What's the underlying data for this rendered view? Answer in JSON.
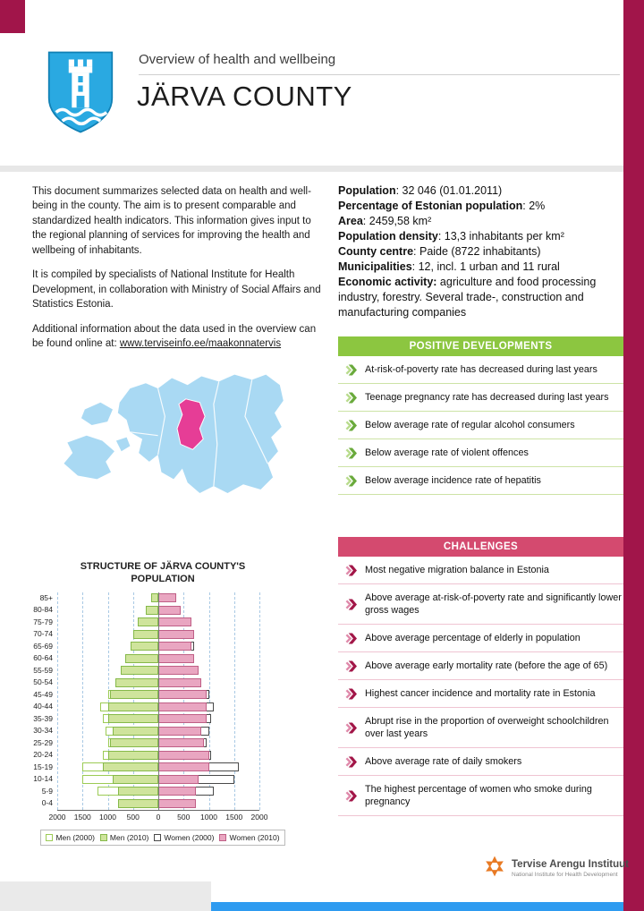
{
  "header": {
    "overline": "Overview of health and wellbeing",
    "title": "JÄRVA COUNTY"
  },
  "intro": {
    "p1": "This document summarizes selected data on health and well-being in the county. The aim is to present comparable and standardized health indicators. This information gives input to the regional planning of services for improving the health and wellbeing of inhabitants.",
    "p2": "It is compiled by specialists of National Institute for Health Development, in collaboration with Ministry of Social Affairs and Statistics Estonia.",
    "p3_prefix": "Additional information about the data used in the overview can be found online at: ",
    "p3_link": "www.terviseinfo.ee/maakonnatervis"
  },
  "facts": [
    {
      "label": "Population",
      "value": ": 32 046 (01.01.2011)"
    },
    {
      "label": "Percentage of Estonian population",
      "value": ": 2%"
    },
    {
      "label": "Area",
      "value": ": 2459,58 km²"
    },
    {
      "label": "Population density",
      "value": ": 13,3 inhabitants per km²"
    },
    {
      "label": "County centre",
      "value": ": Paide (8722 inhabitants)"
    },
    {
      "label": "Municipalities",
      "value": ": 12, incl. 1 urban and 11 rural"
    },
    {
      "label": "Economic activity:",
      "value": " agriculture and food processing industry, forestry. Several trade-, construction and manufacturing companies"
    }
  ],
  "positive": {
    "title": "POSITIVE DEVELOPMENTS",
    "color": "#8cc640",
    "divider": "#cde3a6",
    "arrow_main": "#6aaa3c",
    "arrow_light": "#b9dc8d",
    "items": [
      "At-risk-of-poverty rate has decreased during last years",
      "Teenage pregnancy rate has decreased during last years",
      "Below average rate of regular alcohol consumers",
      "Below average rate of violent offences",
      "Below average incidence rate of hepatitis"
    ]
  },
  "challenges": {
    "title": "CHALLENGES",
    "color": "#d44a6f",
    "divider": "#efc4d2",
    "arrow_main": "#a21648",
    "arrow_light": "#e08aab",
    "items": [
      "Most negative migration balance in Estonia",
      "Above average at-risk-of-poverty rate and significantly lower gross wages",
      "Above average percentage of elderly in population",
      "Above average early mortality rate (before the age of 65)",
      "Highest  cancer incidence and mortality rate in Estonia",
      "Abrupt rise in the proportion of overweight schoolchildren over last years",
      "Above average rate of daily smokers",
      "The highest percentage of women who smoke during pregnancy"
    ]
  },
  "map": {
    "land_color": "#a9d9f3",
    "highlight_color": "#e63d96",
    "highlighted_region": "Järva county"
  },
  "logo": {
    "name": "Tervise Arengu Instituut",
    "subtitle": "National Institute for Health Development",
    "color": "#e87a24"
  },
  "decor": {
    "maroon": "#a1154a",
    "footer_blue": "#2e9bf0",
    "footer_gray": "#eaeaea",
    "band_gray": "#e7e7e7"
  },
  "chart_data": {
    "type": "bar",
    "variant": "population_pyramid",
    "title": "STRUCTURE OF JÄRVA COUNTY'S POPULATION",
    "categories": [
      "85+",
      "80-84",
      "75-79",
      "70-74",
      "65-69",
      "60-64",
      "55-59",
      "50-54",
      "45-49",
      "40-44",
      "35-39",
      "30-34",
      "25-29",
      "20-24",
      "15-19",
      "10-14",
      "5-9",
      "0-4"
    ],
    "series": [
      {
        "name": "Men (2000)",
        "side": "left",
        "style": "outline",
        "fill": "#ffffff",
        "border": "#9ccb55",
        "values": [
          100,
          180,
          320,
          450,
          550,
          600,
          700,
          800,
          1000,
          1150,
          1100,
          1050,
          1000,
          1100,
          1500,
          1500,
          1200,
          800
        ]
      },
      {
        "name": "Men (2010)",
        "side": "left",
        "style": "fill",
        "fill": "#cfe49c",
        "border": "#86b94a",
        "values": [
          150,
          250,
          400,
          500,
          550,
          650,
          750,
          850,
          950,
          1000,
          1000,
          900,
          950,
          1000,
          1100,
          900,
          800,
          800
        ]
      },
      {
        "name": "Women (2000)",
        "side": "right",
        "style": "outline",
        "fill": "#ffffff",
        "border": "#4a4a4a",
        "values": [
          300,
          420,
          600,
          700,
          700,
          700,
          800,
          850,
          1000,
          1100,
          1050,
          1000,
          950,
          1050,
          1600,
          1500,
          1100,
          750
        ]
      },
      {
        "name": "Women (2010)",
        "side": "right",
        "style": "fill",
        "fill": "#e9a6c1",
        "border": "#bf5f86",
        "values": [
          350,
          450,
          650,
          700,
          650,
          700,
          800,
          850,
          950,
          950,
          950,
          850,
          900,
          1000,
          1000,
          800,
          750,
          750
        ]
      }
    ],
    "x_ticks": [
      "2000",
      "1500",
      "1000",
      "500",
      "0",
      "500",
      "1000",
      "1500",
      "2000"
    ],
    "xlim": [
      0,
      2000
    ],
    "gridlines": "dashed vertical every 500",
    "legend_position": "bottom"
  }
}
